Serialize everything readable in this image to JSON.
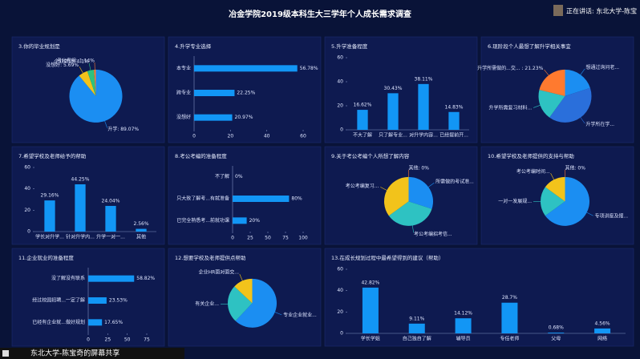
{
  "header": {
    "title": "冶金学院2019级本科生大三学年个人成长需求调查",
    "speaking": "正在讲话: 东北大学-陈宝"
  },
  "footer": {
    "share": "东北大学-陈宝奇的屏幕共享"
  },
  "chart_data": [
    {
      "type": "pie",
      "title": "3.你的毕业规划是",
      "categories": [
        "升学: 89.07%",
        "没想好: 5.69%",
        "企业就业: 4.1%",
        "考公考编: 1.14%"
      ],
      "values": [
        89.07,
        5.69,
        4.1,
        1.14
      ],
      "colors": [
        "#1b8ef2",
        "#f2c31b",
        "#2ec27e",
        "#ff7a2f"
      ]
    },
    {
      "type": "bar",
      "horizontal": true,
      "title": "4.升学专业选择",
      "categories": [
        "本专业",
        "跨专业",
        "没想好"
      ],
      "values": [
        56.78,
        22.25,
        20.97
      ],
      "value_labels": [
        "56.78%",
        "22.25%",
        "20.97%"
      ],
      "xlim": [
        0,
        60
      ],
      "xticks": [
        0,
        20,
        40,
        60
      ],
      "color": "#1296f5"
    },
    {
      "type": "bar",
      "title": "5.升学准备程度",
      "categories": [
        "不大了解",
        "只了解专业...",
        "对升学内容...",
        "已经提前开..."
      ],
      "values": [
        16.62,
        30.43,
        38.11,
        14.83
      ],
      "value_labels": [
        "16.62%",
        "30.43%",
        "38.11%",
        "14.83%"
      ],
      "ylim": [
        0,
        60
      ],
      "yticks": [
        0,
        20,
        40,
        60
      ],
      "color": "#1296f5"
    },
    {
      "type": "pie",
      "title": "6.现阶段个人最想了解升学相关事宜",
      "categories": [
        "想通过询问老...",
        "升学所在学...",
        "升学所需复习材料...",
        "升学所需做的...交... : 21.23%"
      ],
      "values": [
        20,
        40,
        18.77,
        21.23
      ],
      "colors": [
        "#1b8ef2",
        "#2a6fdb",
        "#2ec2c2",
        "#ff7a2f"
      ]
    },
    {
      "type": "bar",
      "title": "7.希望学校及老师给予的帮助",
      "categories": [
        "学长对升学...",
        "针对升学内...",
        "升学一对一...",
        "其他"
      ],
      "values": [
        29.16,
        44.25,
        24.04,
        2.56
      ],
      "value_labels": [
        "29.16%",
        "44.25%",
        "24.04%",
        "2.56%"
      ],
      "ylim": [
        0,
        60
      ],
      "yticks": [
        0,
        20,
        40,
        60
      ],
      "color": "#1296f5"
    },
    {
      "type": "bar",
      "horizontal": true,
      "title": "8.考公考编的准备程度",
      "categories": [
        "不了解",
        "只大致了解考...有就准备",
        "已完全熟悉考...前就功课"
      ],
      "values": [
        0,
        80,
        20
      ],
      "value_labels": [
        "0%",
        "80%",
        "20%"
      ],
      "xlim": [
        0,
        100
      ],
      "xticks": [
        0,
        25,
        50,
        75,
        100
      ],
      "color": "#1296f5"
    },
    {
      "type": "pie",
      "title": "9.关于考公考编个人所想了解内容",
      "categories": [
        "其他: 0%",
        "所需做的考试准...",
        "考公考编招考信...",
        "考公考编复习..."
      ],
      "values": [
        0,
        30,
        35,
        35
      ],
      "colors": [
        "#ff7a2f",
        "#1b8ef2",
        "#2ec2c2",
        "#f2c31b"
      ]
    },
    {
      "type": "pie",
      "title": "10.希望学校及老师提供的支持与帮助",
      "categories": [
        "其他: 0%",
        "专项讲座及报...",
        "一对一发展规...",
        "考公考编时间..."
      ],
      "values": [
        0,
        65,
        20,
        15
      ],
      "colors": [
        "#ff7a2f",
        "#1b8ef2",
        "#2ec2c2",
        "#f2c31b"
      ]
    },
    {
      "type": "bar",
      "horizontal": true,
      "title": "11.企业就业的准备程度",
      "categories": [
        "没了解没有联系",
        "经过校园招聘...一定了解",
        "已经有企业就...做好规划"
      ],
      "values": [
        58.82,
        23.53,
        17.65
      ],
      "value_labels": [
        "58.82%",
        "23.53%",
        "17.65%"
      ],
      "xlim": [
        0,
        75
      ],
      "xticks": [
        0,
        25,
        50,
        75
      ],
      "color": "#1296f5"
    },
    {
      "type": "pie",
      "title": "12.想要学校及老师提供点帮助",
      "categories": [
        "专业企业就业...",
        "有关企业...",
        "企业HR面对面交..."
      ],
      "values": [
        62,
        25,
        13
      ],
      "colors": [
        "#1b8ef2",
        "#2ec2c2",
        "#f2c31b"
      ]
    },
    {
      "type": "bar",
      "title": "13.在成长规划过程中最希望得到的建议（帮助）",
      "categories": [
        "学长学姐",
        "自己独自了解",
        "辅导员",
        "专任老师",
        "父母",
        "网络"
      ],
      "values": [
        42.82,
        9.11,
        14.12,
        28.7,
        0.68,
        4.56
      ],
      "value_labels": [
        "42.82%",
        "9.11%",
        "14.12%",
        "28.7%",
        "0.68%",
        "4.56%"
      ],
      "ylim": [
        0,
        60
      ],
      "yticks": [
        0,
        20,
        40,
        60
      ],
      "color": "#1296f5"
    }
  ]
}
